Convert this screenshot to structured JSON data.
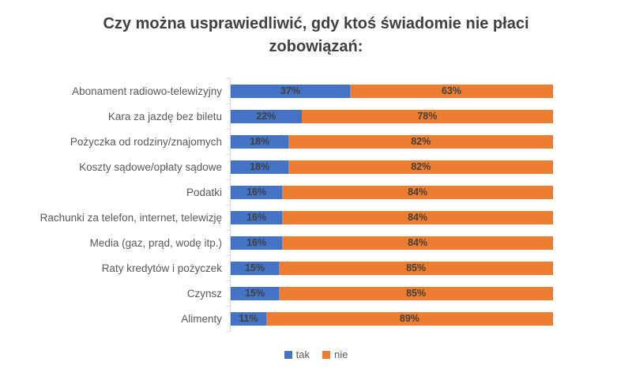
{
  "title": "Czy można usprawiedliwić, gdy ktoś świadomie nie płaci zobowiązań:",
  "colors": {
    "tak": "#4472C4",
    "nie": "#ED7D31",
    "value_label": "#404040",
    "category_label": "#595959",
    "title": "#404040",
    "axis": "#D9D9D9"
  },
  "chart_data": {
    "type": "bar",
    "orientation": "horizontal",
    "stacked": true,
    "title": "Czy można usprawiedliwić, gdy ktoś świadomie nie płaci zobowiązań:",
    "categories": [
      "Abonament radiowo-telewizyjny",
      "Kara za jazdę bez biletu",
      "Pożyczka od rodziny/znajomych",
      "Koszty sądowe/opłaty sądowe",
      "Podatki",
      "Rachunki za telefon, internet, telewizję",
      "Media (gaz, prąd, wodę itp.)",
      "Raty kredytów i pożyczek",
      "Czynsz",
      "Alimenty"
    ],
    "series": [
      {
        "name": "tak",
        "color": "#4472C4",
        "values": [
          37,
          22,
          18,
          18,
          16,
          16,
          16,
          15,
          15,
          11
        ]
      },
      {
        "name": "nie",
        "color": "#ED7D31",
        "values": [
          63,
          78,
          82,
          82,
          84,
          84,
          84,
          85,
          85,
          89
        ]
      }
    ],
    "value_suffix": "%",
    "xlim": [
      0,
      100
    ],
    "grid": false,
    "legend_position": "bottom",
    "data_labels": "inside-center"
  }
}
